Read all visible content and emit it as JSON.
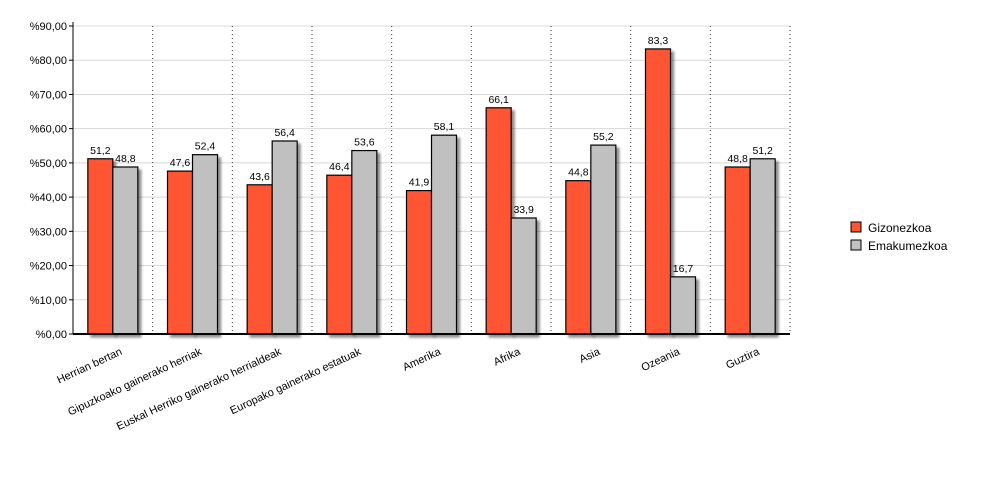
{
  "chart_data": {
    "type": "bar",
    "title": "",
    "xlabel": "",
    "ylabel": "",
    "ylim": [
      0,
      90
    ],
    "yticks": [
      "%0,00",
      "%10,00",
      "%20,00",
      "%30,00",
      "%40,00",
      "%50,00",
      "%60,00",
      "%70,00",
      "%80,00",
      "%90,00"
    ],
    "categories": [
      "Herrian bertan",
      "Gipuzkoako gainerako herriak",
      "Euskal Herriko gainerako herrialdeak",
      "Europako gainerako estatuak",
      "Amerika",
      "Afrika",
      "Asia",
      "Ozeania",
      "Guztira"
    ],
    "series": [
      {
        "name": "Gizonezkoa",
        "color": "#ff5533",
        "values": [
          51.2,
          47.6,
          43.6,
          46.4,
          41.9,
          66.1,
          44.8,
          83.3,
          48.8
        ],
        "labels": [
          "51,2",
          "47,6",
          "43,6",
          "46,4",
          "41,9",
          "66,1",
          "44,8",
          "83,3",
          "48,8"
        ]
      },
      {
        "name": "Emakumezkoa",
        "color": "#c0c0c0",
        "values": [
          48.8,
          52.4,
          56.4,
          53.6,
          58.1,
          33.9,
          55.2,
          16.7,
          51.2
        ],
        "labels": [
          "48,8",
          "52,4",
          "56,4",
          "53,6",
          "58,1",
          "33,9",
          "55,2",
          "16,7",
          "51,2"
        ]
      }
    ],
    "grid": true,
    "legend_position": "right"
  }
}
